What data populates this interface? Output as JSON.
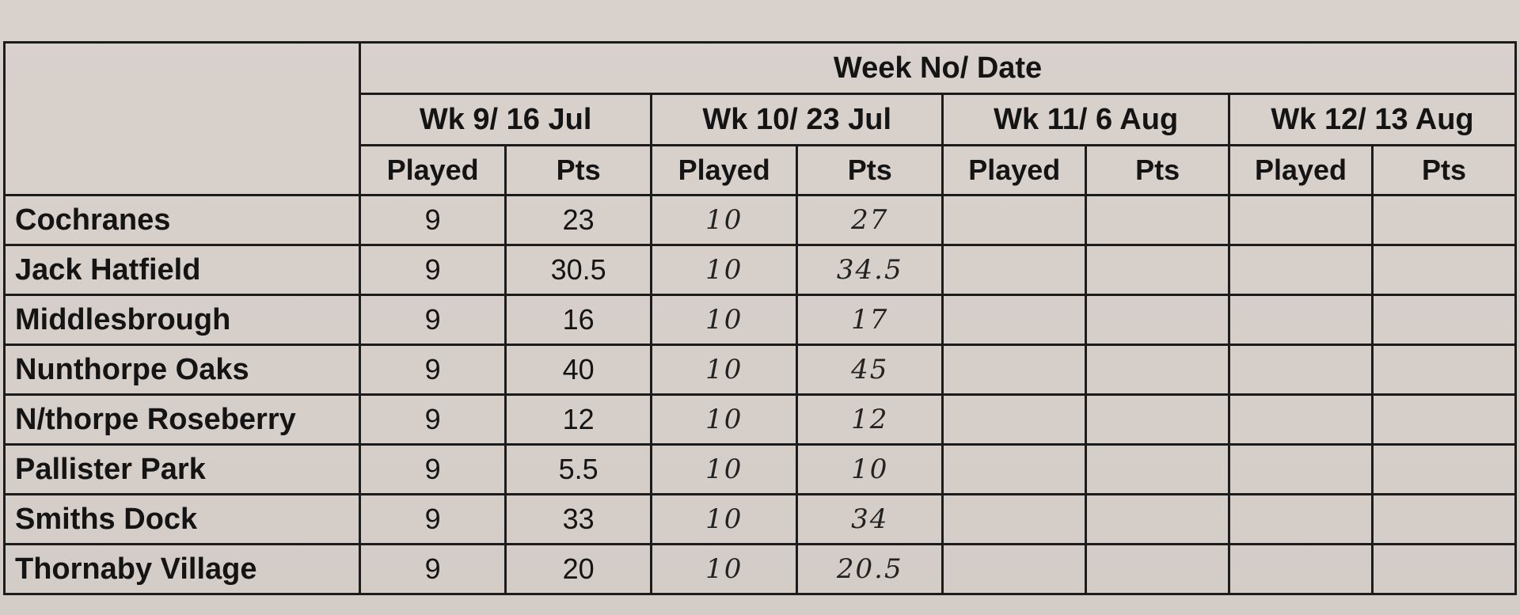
{
  "header": {
    "title": "Week No/ Date",
    "weeks": [
      "Wk 9/ 16 Jul",
      "Wk 10/ 23 Jul",
      "Wk 11/ 6 Aug",
      "Wk 12/ 13 Aug"
    ],
    "played_label": "Played",
    "pts_label": "Pts"
  },
  "rows": [
    {
      "team": "Cochranes",
      "wk9_played": "9",
      "wk9_pts": "23",
      "wk10_played": "10",
      "wk10_pts": "27"
    },
    {
      "team": "Jack Hatfield",
      "wk9_played": "9",
      "wk9_pts": "30.5",
      "wk10_played": "10",
      "wk10_pts": "34.5"
    },
    {
      "team": "Middlesbrough",
      "wk9_played": "9",
      "wk9_pts": "16",
      "wk10_played": "10",
      "wk10_pts": "17"
    },
    {
      "team": "Nunthorpe Oaks",
      "wk9_played": "9",
      "wk9_pts": "40",
      "wk10_played": "10",
      "wk10_pts": "45"
    },
    {
      "team": "N/thorpe Roseberry",
      "wk9_played": "9",
      "wk9_pts": "12",
      "wk10_played": "10",
      "wk10_pts": "12"
    },
    {
      "team": "Pallister Park",
      "wk9_played": "9",
      "wk9_pts": "5.5",
      "wk10_played": "10",
      "wk10_pts": "10"
    },
    {
      "team": "Smiths Dock",
      "wk9_played": "9",
      "wk9_pts": "33",
      "wk10_played": "10",
      "wk10_pts": "34"
    },
    {
      "team": "Thornaby Village",
      "wk9_played": "9",
      "wk9_pts": "20",
      "wk10_played": "10",
      "wk10_pts": "20.5"
    }
  ]
}
